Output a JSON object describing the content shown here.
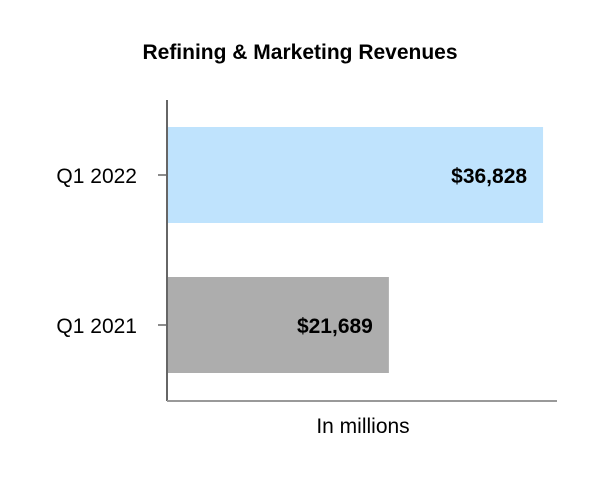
{
  "chart_data": {
    "type": "bar",
    "orientation": "horizontal",
    "title": "Refining & Marketing Revenues",
    "xlabel": "In millions",
    "ylabel": "",
    "categories": [
      "Q1 2022",
      "Q1 2021"
    ],
    "values": [
      36828,
      21689
    ],
    "value_labels": [
      "$36,828",
      "$21,689"
    ],
    "bar_colors": [
      "#bfe3fd",
      "#adadad"
    ],
    "xlim": [
      0,
      38000
    ],
    "grid": false,
    "legend": "none"
  }
}
